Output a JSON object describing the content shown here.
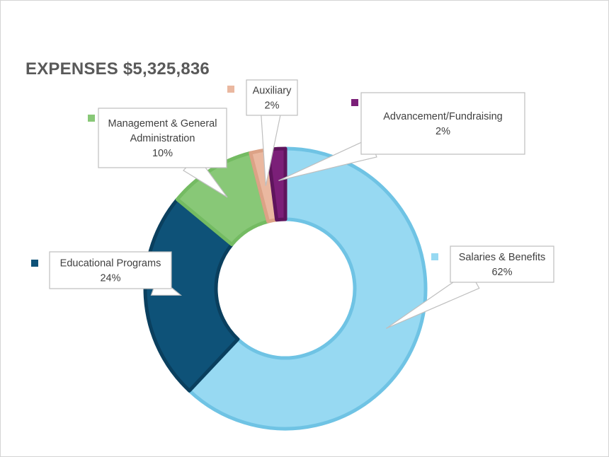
{
  "chart_data": {
    "type": "pie",
    "variant": "doughnut",
    "title": "EXPENSES $5,325,836",
    "slices": [
      {
        "label": "Salaries & Benefits",
        "value": 62,
        "value_label": "62%",
        "color": "#97d9f2",
        "border": "#6fc3e4"
      },
      {
        "label": "Educational Programs",
        "value": 24,
        "value_label": "24%",
        "color": "#0e5278",
        "border": "#0a3f5e"
      },
      {
        "label": "Management & General Administration",
        "label_lines": [
          "Management & General",
          "Administration"
        ],
        "value": 10,
        "value_label": "10%",
        "color": "#88c877",
        "border": "#74bb62"
      },
      {
        "label": "Auxiliary",
        "value": 2,
        "value_label": "2%",
        "color": "#eab8a0",
        "border": "#dca286"
      },
      {
        "label": "Advancement/Fundraising",
        "value": 2,
        "value_label": "2%",
        "color": "#7b1f78",
        "border": "#5f155d"
      }
    ],
    "legend": "callouts"
  },
  "colors": {
    "callout_border": "#bfbfbf",
    "text": "#404040",
    "title": "#595959"
  }
}
